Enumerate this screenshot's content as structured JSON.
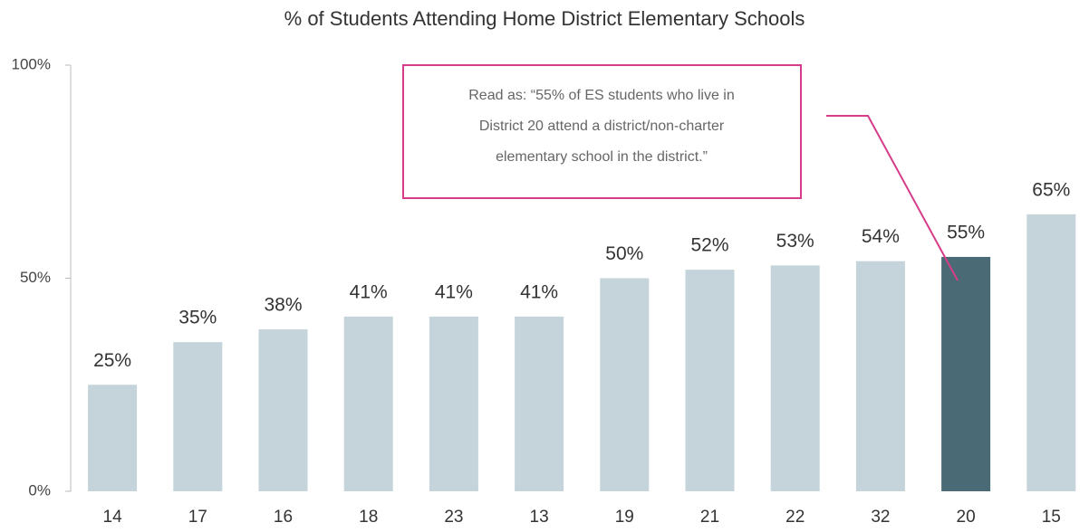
{
  "chart_data": {
    "type": "bar",
    "title": "% of Students Attending Home District Elementary Schools",
    "categories": [
      "14",
      "17",
      "16",
      "18",
      "23",
      "13",
      "19",
      "21",
      "22",
      "32",
      "20",
      "15"
    ],
    "values": [
      25,
      35,
      38,
      41,
      41,
      41,
      50,
      52,
      53,
      54,
      55,
      65
    ],
    "value_labels": [
      "25%",
      "35%",
      "38%",
      "41%",
      "41%",
      "41%",
      "50%",
      "52%",
      "53%",
      "54%",
      "55%",
      "65%"
    ],
    "colors": [
      "#c5d4db",
      "#c5d4db",
      "#c5d4db",
      "#c5d4db",
      "#c5d4db",
      "#c5d4db",
      "#c5d4db",
      "#c5d4db",
      "#c5d4db",
      "#c5d4db",
      "#4a6a75",
      "#c5d4db"
    ],
    "ylim": [
      0,
      100
    ],
    "yticks": [
      {
        "value": 0,
        "label": "0%"
      },
      {
        "value": 50,
        "label": "50%"
      },
      {
        "value": 100,
        "label": "100%"
      }
    ],
    "grid": false,
    "annotation": [
      "Read as: “55% of ES students who live in",
      "District 20 attend a district/non-charter",
      "elementary school in the district.”"
    ]
  }
}
